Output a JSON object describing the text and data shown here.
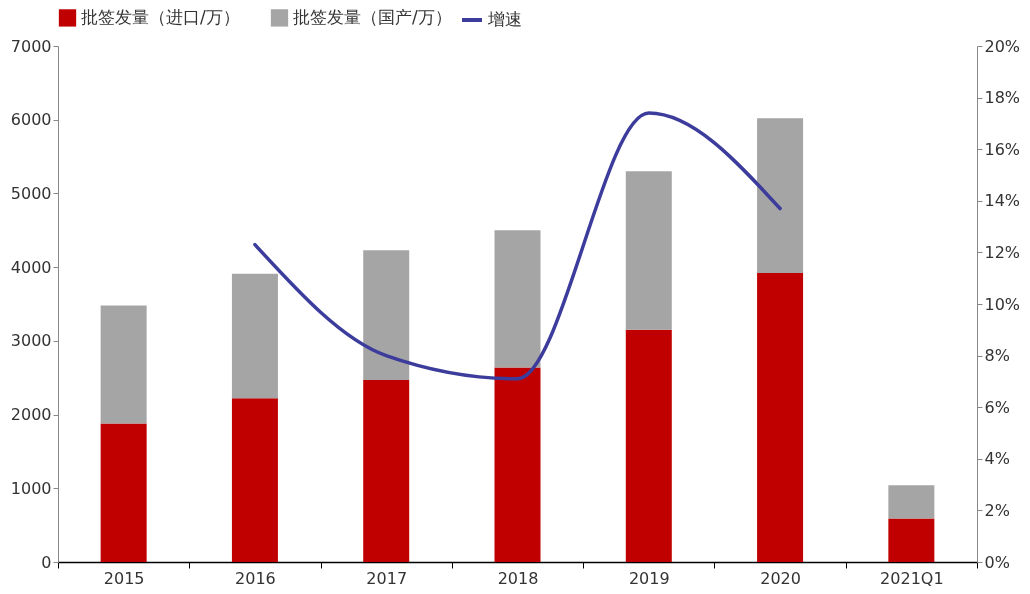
{
  "chart_data": {
    "type": "bar",
    "stacked": true,
    "categories": [
      "2015",
      "2016",
      "2017",
      "2018",
      "2019",
      "2020",
      "2021Q1"
    ],
    "series": [
      {
        "name": "批签发量（进口/万）",
        "color": "#c00000",
        "values": [
          1880,
          2220,
          2470,
          2640,
          3150,
          3920,
          590
        ]
      },
      {
        "name": "批签发量（国产/万）",
        "color": "#a5a5a5",
        "values": [
          1600,
          1690,
          1760,
          1860,
          2150,
          2100,
          450
        ]
      },
      {
        "name": "增速",
        "type": "line",
        "axis": "y2",
        "color": "#3c3c9c",
        "values": [
          null,
          12.3,
          8.0,
          7.1,
          17.4,
          13.7,
          null
        ]
      }
    ],
    "ylim": [
      0,
      7000
    ],
    "yticks": [
      0,
      1000,
      2000,
      3000,
      4000,
      5000,
      6000,
      7000
    ],
    "y2lim": [
      0,
      20
    ],
    "y2ticks": [
      {
        "value": 0,
        "label": "0%"
      },
      {
        "value": 2,
        "label": "2%"
      },
      {
        "value": 4,
        "label": "4%"
      },
      {
        "value": 6,
        "label": "6%"
      },
      {
        "value": 8,
        "label": "8%"
      },
      {
        "value": 10,
        "label": "10%"
      },
      {
        "value": 12,
        "label": "12%"
      },
      {
        "value": 14,
        "label": "14%"
      },
      {
        "value": 16,
        "label": "16%"
      },
      {
        "value": 18,
        "label": "18%"
      },
      {
        "value": 20,
        "label": "20%"
      }
    ],
    "legend": "top",
    "grid": false,
    "marker": "none",
    "line_style": "solid"
  }
}
